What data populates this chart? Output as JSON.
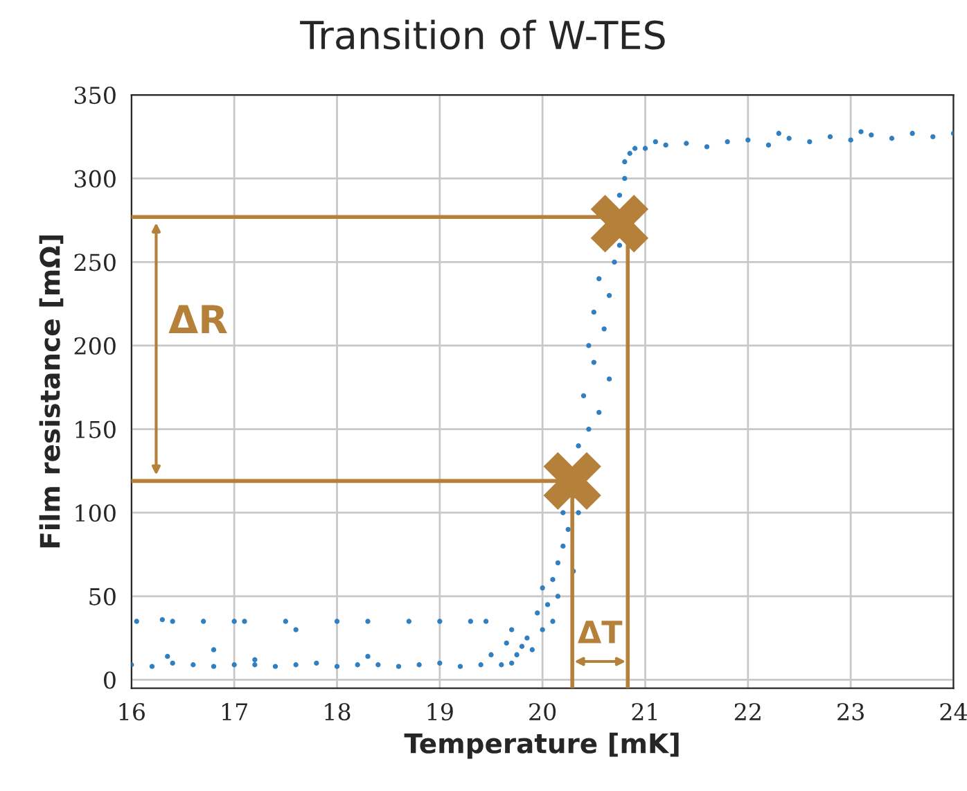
{
  "chart_data": {
    "type": "scatter",
    "title": "Transition of W-TES",
    "xlabel": "Temperature [mK]",
    "ylabel": "Film resistance [mΩ]",
    "xlim": [
      16,
      24
    ],
    "xticks": [
      16,
      17,
      18,
      19,
      20,
      21,
      22,
      23,
      24
    ],
    "ylim": [
      -5,
      350
    ],
    "yticks": [
      0,
      50,
      100,
      150,
      200,
      250,
      300,
      350
    ],
    "grid": true,
    "series": [
      {
        "color": "#2f7fc1",
        "marker": "circle",
        "x": [
          16.0,
          16.2,
          16.4,
          16.6,
          16.8,
          17.0,
          17.2,
          17.4,
          17.6,
          17.8,
          18.0,
          18.2,
          18.4,
          18.6,
          18.8,
          19.0,
          19.2,
          19.4,
          19.6,
          19.7,
          16.05,
          16.3,
          16.4,
          16.7,
          17.0,
          17.1,
          17.5,
          17.6,
          18.0,
          18.3,
          18.7,
          19.0,
          19.3,
          19.45,
          19.7,
          16.8,
          16.35,
          17.2,
          18.3,
          19.5,
          19.65,
          19.75,
          19.8,
          19.85,
          19.9,
          19.95,
          20.0,
          20.0,
          20.05,
          20.1,
          20.1,
          20.15,
          20.15,
          20.2,
          20.2,
          20.25,
          20.3,
          20.3,
          20.35,
          20.35,
          20.4,
          20.45,
          20.45,
          20.5,
          20.5,
          20.55,
          20.55,
          20.6,
          20.65,
          20.65,
          20.7,
          20.75,
          20.75,
          20.8,
          20.8,
          20.85,
          20.9,
          21.0,
          21.2,
          21.4,
          21.6,
          21.8,
          22.0,
          22.2,
          22.4,
          22.6,
          22.8,
          23.0,
          23.2,
          23.4,
          23.6,
          23.8,
          24.0,
          21.1,
          22.3,
          23.1
        ],
        "values": [
          9,
          8,
          10,
          9,
          8,
          9,
          9,
          8,
          9,
          10,
          8,
          9,
          9,
          8,
          9,
          10,
          8,
          9,
          9,
          10,
          35,
          36,
          35,
          35,
          35,
          35,
          35,
          30,
          35,
          35,
          35,
          35,
          35,
          35,
          30,
          18,
          14,
          12,
          14,
          15,
          22,
          15,
          20,
          25,
          18,
          40,
          30,
          55,
          45,
          60,
          35,
          70,
          50,
          80,
          100,
          90,
          110,
          65,
          100,
          140,
          170,
          150,
          200,
          190,
          220,
          160,
          240,
          210,
          180,
          230,
          250,
          290,
          260,
          300,
          310,
          315,
          318,
          318,
          320,
          321,
          319,
          322,
          323,
          320,
          324,
          322,
          325,
          323,
          326,
          324,
          327,
          325,
          327,
          322,
          327,
          328
        ]
      },
      {
        "type": "line",
        "color": "#b5803a",
        "marker": "none",
        "line_style": "solid",
        "x": [
          16,
          20.29,
          20.29
        ],
        "values": [
          119,
          119,
          -5
        ]
      },
      {
        "type": "line",
        "color": "#b5803a",
        "marker": "none",
        "line_style": "solid",
        "x": [
          16,
          20.83,
          20.83
        ],
        "values": [
          277,
          277,
          -5
        ]
      },
      {
        "type": "scatter",
        "color": "#b5803a",
        "marker": "cross",
        "x": [
          20.29,
          20.75
        ],
        "values": [
          119,
          273
        ]
      }
    ],
    "annotations": [
      "ΔR",
      "ΔT"
    ]
  }
}
